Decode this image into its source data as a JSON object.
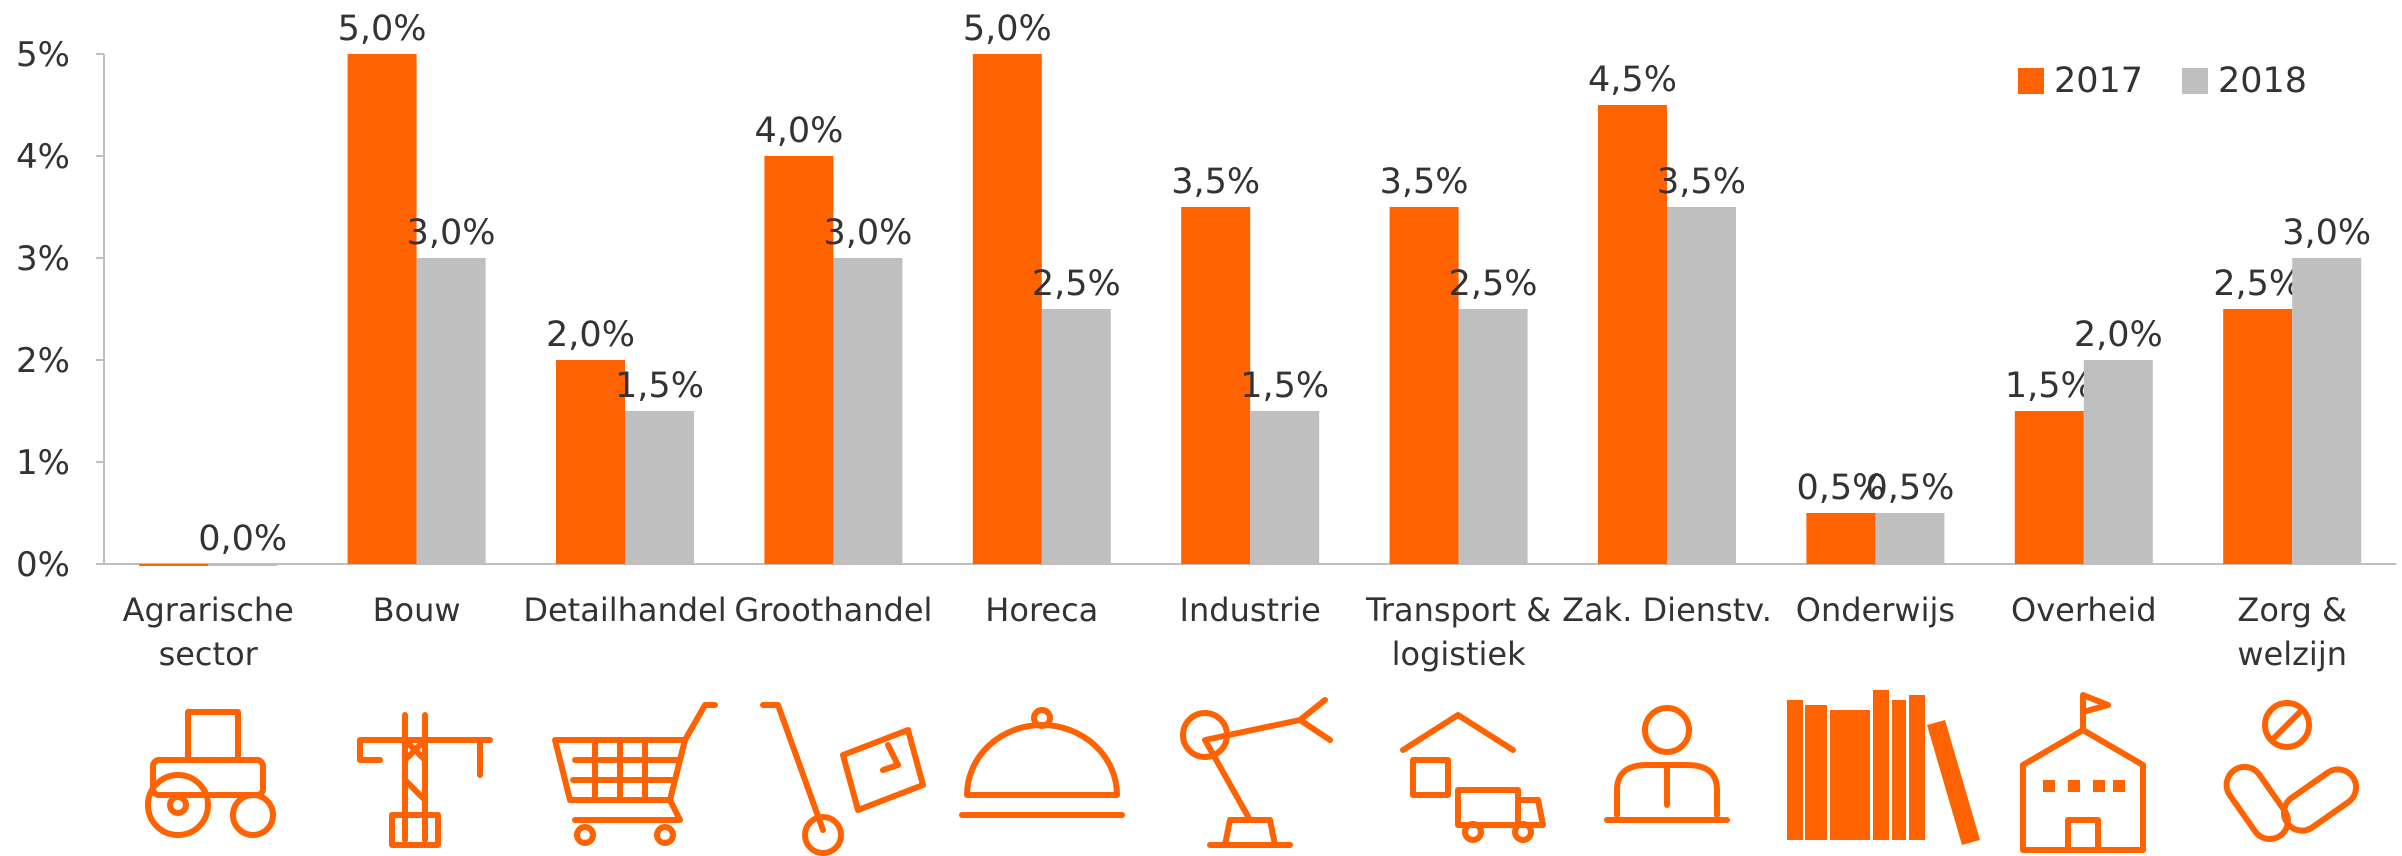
{
  "chart_data": {
    "type": "bar",
    "categories": [
      "Agrarische sector",
      "Bouw",
      "Detailhandel",
      "Groothandel",
      "Horeca",
      "Industrie",
      "Transport & logistiek",
      "Zak. Dienstv.",
      "Onderwijs",
      "Overheid",
      "Zorg & welzijn"
    ],
    "series": [
      {
        "name": "2017",
        "color": "#ff6200",
        "values": [
          0,
          5,
          2,
          4,
          5,
          3.5,
          3.5,
          4.5,
          0.5,
          1.5,
          2.5
        ],
        "value_labels": [
          null,
          "5,0%",
          "2,0%",
          "4,0%",
          "5,0%",
          "3,5%",
          "3,5%",
          "4,5%",
          "0,5%",
          "1,5%",
          "2,5%"
        ]
      },
      {
        "name": "2018",
        "color": "#bfbfbf",
        "values": [
          0,
          3,
          1.5,
          3,
          2.5,
          1.5,
          2.5,
          3.5,
          0.5,
          2,
          3
        ],
        "value_labels": [
          "0,0%",
          "3,0%",
          "1,5%",
          "3,0%",
          "2,5%",
          "1,5%",
          "2,5%",
          "3,5%",
          "0,5%",
          "2,0%",
          "3,0%"
        ]
      }
    ],
    "ylim": [
      0,
      5
    ],
    "yticks": [
      {
        "value": 0,
        "label": "0%"
      },
      {
        "value": 1,
        "label": "1%"
      },
      {
        "value": 2,
        "label": "2%"
      },
      {
        "value": 3,
        "label": "3%"
      },
      {
        "value": 4,
        "label": "4%"
      },
      {
        "value": 5,
        "label": "5%"
      }
    ],
    "legend": "top-right",
    "grid": false
  }
}
